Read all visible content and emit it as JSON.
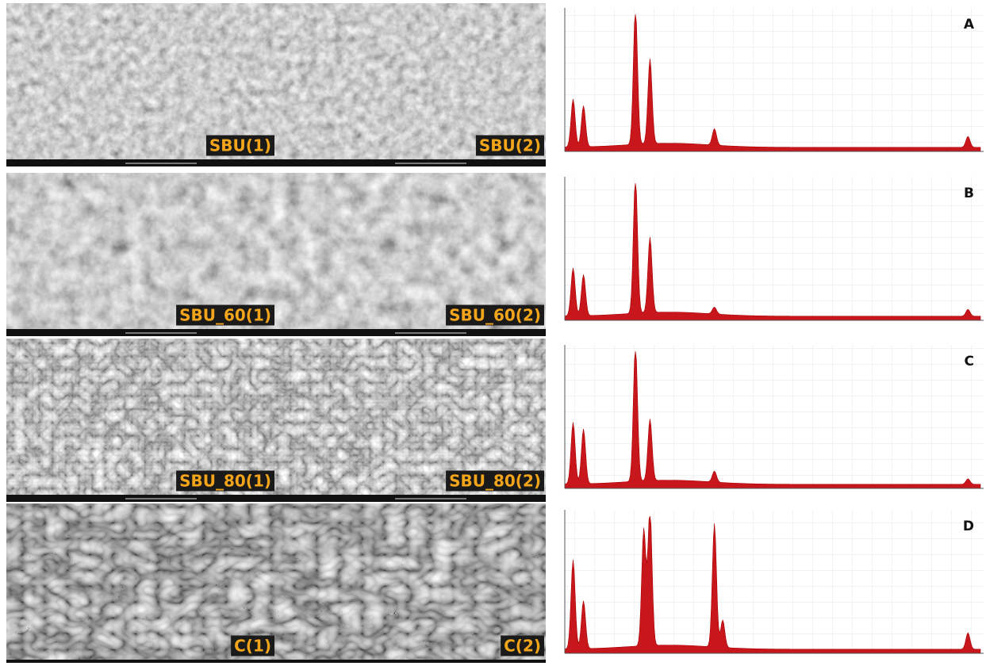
{
  "sem_labels": [
    [
      "SBU(1)",
      "SBU(2)"
    ],
    [
      "SBU_60(1)",
      "SBU_60(2)"
    ],
    [
      "SBU_80(1)",
      "SBU_80(2)"
    ],
    [
      "C(1)",
      "C(2)"
    ]
  ],
  "spectrum_labels": [
    "A",
    "B",
    "C",
    "D"
  ]
}
